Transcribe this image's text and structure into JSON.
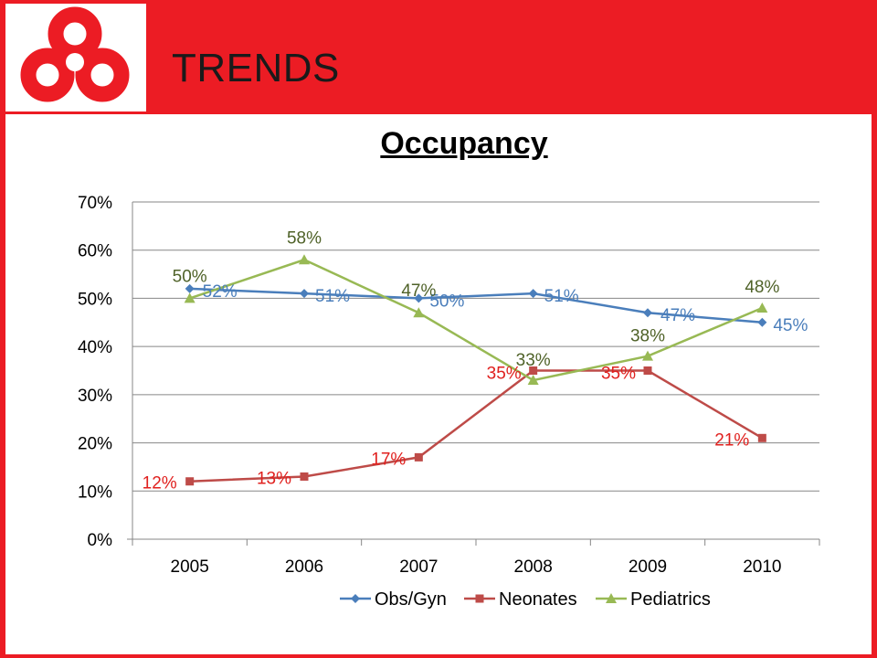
{
  "slide": {
    "title": "TRENDS"
  },
  "colors": {
    "brand_red": "#ec1c24"
  },
  "logo": {
    "icon": "red-interlocking-rings-logo"
  },
  "chart_data": {
    "type": "line",
    "title": "Occupancy",
    "categories": [
      "2005",
      "2006",
      "2007",
      "2008",
      "2009",
      "2010"
    ],
    "y_ticks": [
      "0%",
      "10%",
      "20%",
      "30%",
      "40%",
      "50%",
      "60%",
      "70%"
    ],
    "ylim": [
      0,
      70
    ],
    "y_unit": "%",
    "grid": true,
    "legend_position": "bottom",
    "series": [
      {
        "name": "Obs/Gyn",
        "color": "#4a7ebb",
        "marker": "diamond",
        "values": [
          52,
          51,
          50,
          51,
          47,
          45
        ],
        "labels": [
          "52%",
          "51%",
          "50%",
          "51%",
          "47%",
          "45%"
        ]
      },
      {
        "name": "Neonates",
        "color": "#be4b48",
        "label_color": "#e0201e",
        "marker": "square",
        "values": [
          12,
          13,
          17,
          35,
          35,
          21
        ],
        "labels": [
          "12%",
          "13%",
          "17%",
          "35%",
          "35%",
          "21%"
        ]
      },
      {
        "name": "Pediatrics",
        "color": "#98b954",
        "label_color": "#4f6228",
        "marker": "triangle",
        "values": [
          50,
          58,
          47,
          33,
          38,
          48
        ],
        "labels": [
          "50%",
          "58%",
          "47%",
          "33%",
          "38%",
          "48%"
        ]
      }
    ]
  }
}
